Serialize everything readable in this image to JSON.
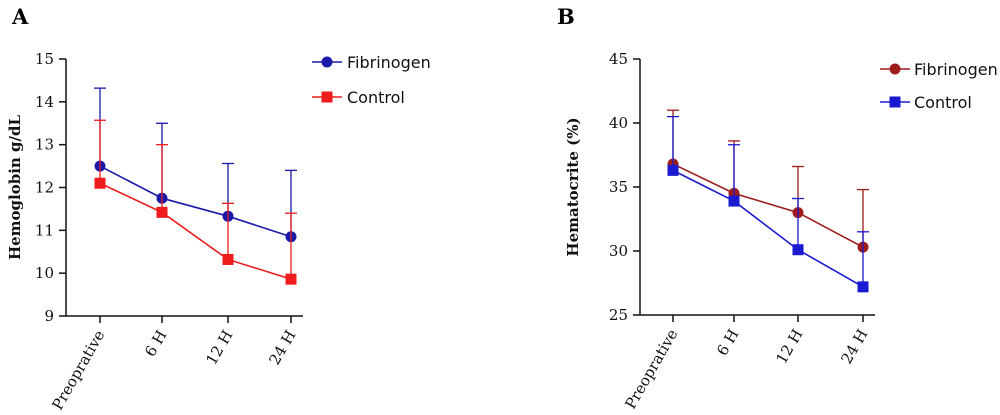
{
  "chart_data": [
    {
      "panel": "A",
      "type": "line",
      "categories": [
        "Preoprative",
        "6 H",
        "12 H",
        "24 H"
      ],
      "ylabel": "Hemoglobin g/dL",
      "ylim": [
        9,
        15
      ],
      "yticks": [
        "9",
        "10",
        "11",
        "12",
        "13",
        "14",
        "15"
      ],
      "legend_position": "top-right",
      "series": [
        {
          "name": "Fibrinogen",
          "marker": "circle",
          "color": "#1a1aa8",
          "values": [
            12.5,
            11.75,
            11.33,
            10.85
          ],
          "error_upper": [
            14.32,
            13.5,
            12.56,
            12.4
          ]
        },
        {
          "name": "Control",
          "marker": "square",
          "color": "#ee1c1c",
          "values": [
            12.1,
            11.42,
            10.32,
            9.86
          ],
          "error_upper": [
            13.57,
            13.0,
            11.63,
            11.4
          ]
        }
      ]
    },
    {
      "panel": "B",
      "type": "line",
      "categories": [
        "Preoprative",
        "6 H",
        "12 H",
        "24 H"
      ],
      "ylabel": "Hematocrite (%)",
      "ylim": [
        25,
        45
      ],
      "yticks": [
        "25",
        "30",
        "35",
        "40",
        "45"
      ],
      "legend_position": "top-right",
      "series": [
        {
          "name": "Fibrinogen",
          "marker": "circle",
          "color": "#9e1b1b",
          "values": [
            36.8,
            34.5,
            33.0,
            30.3
          ],
          "error_upper": [
            41.0,
            38.6,
            36.6,
            34.8
          ]
        },
        {
          "name": "Control",
          "marker": "square",
          "color": "#1a1ad0",
          "values": [
            36.3,
            33.9,
            30.1,
            27.2
          ],
          "error_upper": [
            40.5,
            38.3,
            34.1,
            31.5
          ]
        }
      ]
    }
  ]
}
